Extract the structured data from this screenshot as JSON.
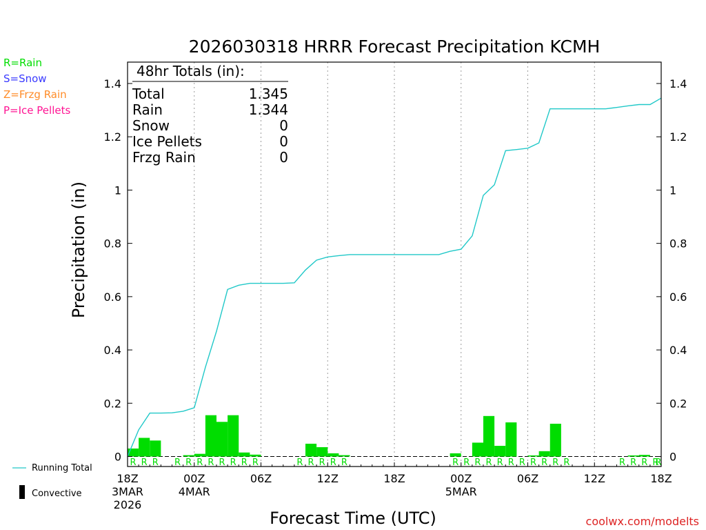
{
  "chart_data": {
    "type": "bar",
    "title": "2026030318 HRRR Forecast Precipitation KCMH",
    "xlabel": "Forecast Time (UTC)",
    "ylabel": "Precipitation (in)",
    "ylim": [
      0,
      1.48
    ],
    "y_ticks": [
      0,
      0.2,
      0.4,
      0.6,
      0.8,
      1,
      1.2,
      1.4
    ],
    "y_tick_labels": [
      "0",
      "0.2",
      "0.4",
      "0.6",
      "0.8",
      "1",
      "1.2",
      "1.4"
    ],
    "x_range_hours": [
      0,
      48
    ],
    "x_ticks": [
      {
        "hour": 0,
        "lines": [
          "18Z",
          "3MAR",
          "2026"
        ]
      },
      {
        "hour": 6,
        "lines": [
          "00Z",
          "4MAR"
        ]
      },
      {
        "hour": 12,
        "lines": [
          "06Z"
        ]
      },
      {
        "hour": 18,
        "lines": [
          "12Z"
        ]
      },
      {
        "hour": 24,
        "lines": [
          "18Z"
        ]
      },
      {
        "hour": 30,
        "lines": [
          "00Z",
          "5MAR"
        ]
      },
      {
        "hour": 36,
        "lines": [
          "06Z"
        ]
      },
      {
        "hour": 42,
        "lines": [
          "12Z"
        ]
      },
      {
        "hour": 48,
        "lines": [
          "18Z"
        ]
      }
    ],
    "grid": true,
    "hourly_precip": [
      0.03,
      0.07,
      0.06,
      0,
      0,
      0.005,
      0.01,
      0.155,
      0.13,
      0.155,
      0.015,
      0.007,
      0,
      0,
      0,
      0,
      0.048,
      0.035,
      0.012,
      0.005,
      0,
      0,
      0,
      0,
      0,
      0,
      0,
      0,
      0,
      0.012,
      0,
      0.052,
      0.152,
      0.04,
      0.128,
      0,
      0.004,
      0.02,
      0.123,
      0,
      0,
      0,
      0,
      0,
      0,
      0.004,
      0.006,
      0,
      0.02
    ],
    "precip_type": [
      "R",
      "R",
      "R",
      "",
      "R",
      "R",
      "R",
      "R",
      "R",
      "R",
      "R",
      "R",
      "",
      "",
      "",
      "R",
      "R",
      "R",
      "R",
      "R",
      "",
      "",
      "",
      "",
      "",
      "",
      "",
      "",
      "",
      "R",
      "R",
      "R",
      "R",
      "R",
      "R",
      "R",
      "R",
      "R",
      "R",
      "R",
      "",
      "",
      "",
      "",
      "R",
      "R",
      "R",
      "R",
      "R"
    ],
    "running_total": [
      0,
      0.1,
      0.163,
      0.163,
      0.164,
      0.17,
      0.183,
      0.335,
      0.47,
      0.627,
      0.643,
      0.65,
      0.65,
      0.65,
      0.65,
      0.652,
      0.7,
      0.737,
      0.749,
      0.754,
      0.758,
      0.758,
      0.758,
      0.758,
      0.758,
      0.758,
      0.758,
      0.758,
      0.758,
      0.77,
      0.778,
      0.828,
      0.98,
      1.02,
      1.148,
      1.152,
      1.157,
      1.177,
      1.305,
      1.305,
      1.305,
      1.305,
      1.305,
      1.305,
      1.31,
      1.316,
      1.321,
      1.321,
      1.345
    ],
    "legend_types": [
      {
        "text": "R=Rain",
        "color": "#00dd00"
      },
      {
        "text": "S=Snow",
        "color": "#3a3aff"
      },
      {
        "text": "Z=Frzg Rain",
        "color": "#ff8c28"
      },
      {
        "text": "P=Ice Pellets",
        "color": "#ff1493"
      }
    ],
    "legend_bottom": {
      "running_total": "Running Total",
      "convective": "Convective"
    },
    "totals_box": {
      "header": "48hr Totals (in):",
      "rows": [
        {
          "label": "Total",
          "value": "1.345"
        },
        {
          "label": "Rain",
          "value": "1.344"
        },
        {
          "label": "Snow",
          "value": "0"
        },
        {
          "label": "Ice Pellets",
          "value": "0"
        },
        {
          "label": "Frzg Rain",
          "value": "0"
        }
      ]
    },
    "credit": "coolwx.com/modelts",
    "colors": {
      "bar": "#00dd00",
      "line": "#20c8c8",
      "type_letter": "#00dd00",
      "credit": "#dd2222"
    }
  }
}
